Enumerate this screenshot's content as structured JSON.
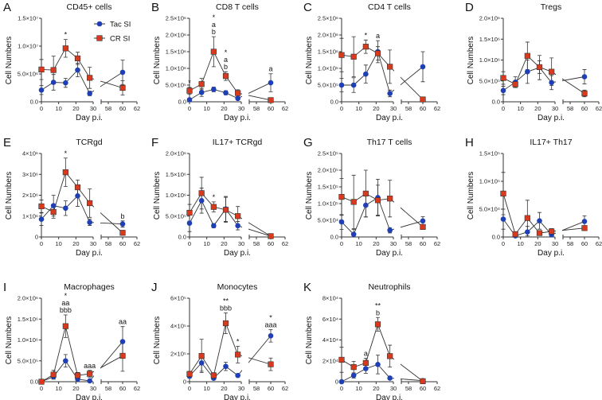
{
  "colors": {
    "tac": "#1f3fb5",
    "cr": "#d9391c",
    "line": "#333333"
  },
  "legend": [
    {
      "name": "Tac SI",
      "marker": "circle"
    },
    {
      "name": "CR SI",
      "marker": "square"
    }
  ],
  "chart_data": [
    {
      "type": "line",
      "panel": "A",
      "title": "CD45+ cells",
      "xlabel": "Day p.i.",
      "ylabel": "Cell Numbers",
      "x": [
        0,
        7,
        14,
        21,
        28,
        60
      ],
      "xticks": [
        "0",
        "10",
        "20",
        "30",
        "58",
        "60",
        "62"
      ],
      "xlim": [
        [
          0,
          30
        ],
        [
          57,
          62
        ]
      ],
      "ylim": [
        0,
        15000000
      ],
      "yticks": [
        0,
        5000000,
        10000000,
        15000000
      ],
      "ytick_labels": [
        "0.0",
        "5.0×10⁶",
        "1.0×10⁷",
        "1.5×10⁷"
      ],
      "series": [
        {
          "name": "Tac SI",
          "values": [
            2100000.0,
            3500000.0,
            3400000.0,
            5700000.0,
            1500000.0,
            5300000.0
          ],
          "err": [
            800000.0,
            1400000.0,
            800000.0,
            1200000.0,
            400000.0,
            2200000.0
          ]
        },
        {
          "name": "CR SI",
          "values": [
            5800000.0,
            5700000.0,
            9600000.0,
            7800000.0,
            4300000.0,
            2500000.0
          ],
          "err": [
            1800000.0,
            2500000.0,
            1600000.0,
            1100000.0,
            1900000.0,
            1300000.0
          ]
        }
      ],
      "annotations": [
        {
          "x": 14,
          "labels": [
            "*"
          ]
        }
      ]
    },
    {
      "type": "line",
      "panel": "B",
      "title": "CD8 T cells",
      "xlabel": "Day p.i.",
      "ylabel": "Cell Numbers",
      "x": [
        0,
        7,
        14,
        21,
        28,
        60
      ],
      "xticks": [
        "0",
        "10",
        "20",
        "30",
        "58",
        "60",
        "62"
      ],
      "xlim": [
        [
          0,
          30
        ],
        [
          57,
          62
        ]
      ],
      "ylim": [
        0,
        2500000
      ],
      "yticks": [
        0,
        500000,
        1000000,
        1500000,
        2000000,
        2500000
      ],
      "ytick_labels": [
        "0.0",
        "5.0×10⁵",
        "1.0×10⁶",
        "1.5×10⁶",
        "2.0×10⁶",
        "2.5×10⁶"
      ],
      "series": [
        {
          "name": "Tac SI",
          "values": [
            60000.0,
            280000.0,
            370000.0,
            270000.0,
            100000.0,
            570000.0
          ],
          "err": [
            30000.0,
            120000.0,
            70000.0,
            60000.0,
            40000.0,
            270000.0
          ]
        },
        {
          "name": "CR SI",
          "values": [
            330000.0,
            530000.0,
            1500000.0,
            770000.0,
            260000.0,
            50000.0
          ],
          "err": [
            100000.0,
            170000.0,
            450000.0,
            130000.0,
            100000.0,
            30000.0
          ]
        }
      ],
      "annotations": [
        {
          "x": 0,
          "labels": [
            "*"
          ]
        },
        {
          "x": 14,
          "labels": [
            "*",
            "a",
            "b"
          ]
        },
        {
          "x": 21,
          "labels": [
            "*",
            "a",
            "b"
          ]
        },
        {
          "x": 60,
          "labels": [
            "a"
          ]
        }
      ]
    },
    {
      "type": "line",
      "panel": "C",
      "title": "CD4 T cells",
      "xlabel": "Day p.i.",
      "ylabel": "Cell Numbers",
      "x": [
        0,
        7,
        14,
        21,
        28,
        60
      ],
      "xticks": [
        "0",
        "10",
        "20",
        "30",
        "58",
        "60",
        "62"
      ],
      "xlim": [
        [
          0,
          30
        ],
        [
          57,
          62
        ]
      ],
      "ylim": [
        0,
        2500000
      ],
      "yticks": [
        0,
        500000,
        1000000,
        1500000,
        2000000,
        2500000
      ],
      "ytick_labels": [
        "0.0",
        "5.0×10⁵",
        "1.0×10⁶",
        "1.5×10⁶",
        "2.0×10⁶",
        "2.5×10⁶"
      ],
      "series": [
        {
          "name": "Tac SI",
          "values": [
            500000.0,
            500000.0,
            830000.0,
            1500000.0,
            250000.0,
            1050000.0
          ],
          "err": [
            200000.0,
            220000.0,
            270000.0,
            330000.0,
            100000.0,
            450000.0
          ]
        },
        {
          "name": "CR SI",
          "values": [
            1400000.0,
            1350000.0,
            1650000.0,
            1450000.0,
            1050000.0,
            70000.0
          ],
          "err": [
            500000.0,
            600000.0,
            200000.0,
            200000.0,
            500000.0,
            50000.0
          ]
        }
      ],
      "annotations": [
        {
          "x": 14,
          "labels": [
            "*"
          ]
        },
        {
          "x": 21,
          "labels": [
            "a"
          ]
        }
      ]
    },
    {
      "type": "line",
      "panel": "D",
      "title": "Tregs",
      "xlabel": "Day p.i.",
      "ylabel": "Cell Numbers",
      "x": [
        0,
        7,
        14,
        21,
        28,
        60
      ],
      "xticks": [
        "0",
        "10",
        "20",
        "30",
        "58",
        "60",
        "62"
      ],
      "xlim": [
        [
          0,
          30
        ],
        [
          57,
          62
        ]
      ],
      "ylim": [
        0,
        2000000
      ],
      "yticks": [
        0,
        500000,
        1000000,
        1500000,
        2000000
      ],
      "ytick_labels": [
        "0.0",
        "5.0×10⁵",
        "1.0×10⁶",
        "1.5×10⁶",
        "2.0×10⁶"
      ],
      "series": [
        {
          "name": "Tac SI",
          "values": [
            270000.0,
            470000.0,
            720000.0,
            820000.0,
            460000.0,
            600000.0
          ],
          "err": [
            100000.0,
            130000.0,
            280000.0,
            290000.0,
            170000.0,
            170000.0
          ]
        },
        {
          "name": "CR SI",
          "values": [
            570000.0,
            420000.0,
            1100000.0,
            830000.0,
            720000.0,
            200000.0
          ],
          "err": [
            150000.0,
            80000.0,
            330000.0,
            150000.0,
            330000.0,
            80000.0
          ]
        }
      ],
      "annotations": []
    },
    {
      "type": "line",
      "panel": "E",
      "title": "TCRgd",
      "xlabel": "Day p.i.",
      "ylabel": "Cell Numbers",
      "x": [
        0,
        7,
        14,
        21,
        28,
        60
      ],
      "xticks": [
        "0",
        "10",
        "20",
        "30",
        "58",
        "60",
        "62"
      ],
      "xlim": [
        [
          0,
          30
        ],
        [
          57,
          62
        ]
      ],
      "ylim": [
        0,
        4000000
      ],
      "yticks": [
        0,
        1000000,
        2000000,
        3000000,
        4000000
      ],
      "ytick_labels": [
        "0",
        "1×10⁶",
        "2×10⁶",
        "3×10⁶",
        "4×10⁶"
      ],
      "series": [
        {
          "name": "Tac SI",
          "values": [
            850000.0,
            1500000.0,
            1380000.0,
            1970000.0,
            700000.0,
            620000.0
          ],
          "err": [
            300000.0,
            500000.0,
            350000.0,
            500000.0,
            150000.0,
            150000.0
          ]
        },
        {
          "name": "CR SI",
          "values": [
            1470000.0,
            1200000.0,
            3100000.0,
            2380000.0,
            1620000.0,
            200000.0
          ],
          "err": [
            300000.0,
            300000.0,
            680000.0,
            350000.0,
            680000.0,
            100000.0
          ]
        }
      ],
      "annotations": [
        {
          "x": 14,
          "labels": [
            "*"
          ]
        },
        {
          "x": 60,
          "labels": [
            "b"
          ]
        }
      ]
    },
    {
      "type": "line",
      "panel": "F",
      "title": "IL17+ TCRgd",
      "xlabel": "Day p.i.",
      "ylabel": "Cell Numbers",
      "x": [
        0,
        7,
        14,
        21,
        28,
        60
      ],
      "xticks": [
        "0",
        "10",
        "20",
        "30",
        "58",
        "60",
        "62"
      ],
      "xlim": [
        [
          0,
          30
        ],
        [
          57,
          62
        ]
      ],
      "ylim": [
        0,
        2000000
      ],
      "yticks": [
        0,
        500000,
        1000000,
        1500000,
        2000000
      ],
      "ytick_labels": [
        "0.0",
        "5.0×10⁵",
        "1.0×10⁶",
        "1.5×10⁶",
        "2.0×10⁶"
      ],
      "series": [
        {
          "name": "Tac SI",
          "values": [
            330000.0,
            870000.0,
            270000.0,
            670000.0,
            270000.0,
            20000.0
          ],
          "err": [
            200000.0,
            300000.0,
            50000.0,
            300000.0,
            100000.0,
            10000.0
          ]
        },
        {
          "name": "CR SI",
          "values": [
            580000.0,
            1050000.0,
            720000.0,
            650000.0,
            500000.0,
            20000.0
          ],
          "err": [
            200000.0,
            380000.0,
            120000.0,
            300000.0,
            230000.0,
            10000.0
          ]
        }
      ],
      "annotations": [
        {
          "x": 14,
          "labels": [
            "*"
          ]
        }
      ]
    },
    {
      "type": "line",
      "panel": "G",
      "title": "Th17 T cells",
      "xlabel": "Day p.i.",
      "ylabel": "Cell Numbers",
      "x": [
        0,
        7,
        14,
        21,
        28,
        60
      ],
      "xticks": [
        "0",
        "10",
        "20",
        "30",
        "58",
        "60",
        "62"
      ],
      "xlim": [
        [
          0,
          30
        ],
        [
          57,
          62
        ]
      ],
      "ylim": [
        0,
        250000
      ],
      "yticks": [
        0,
        50000,
        100000,
        150000,
        200000,
        250000
      ],
      "ytick_labels": [
        "0.0",
        "5.0×10⁴",
        "1.0×10⁵",
        "1.5×10⁵",
        "2.0×10⁵",
        "2.5×10⁵"
      ],
      "series": [
        {
          "name": "Tac SI",
          "values": [
            45000.0,
            8000.0,
            95000.0,
            118000.0,
            20000.0,
            48000.0
          ],
          "err": [
            22000.0,
            15000.0,
            35000.0,
            55000.0,
            8000.0,
            13000.0
          ]
        },
        {
          "name": "CR SI",
          "values": [
            120000.0,
            105000.0,
            130000.0,
            110000.0,
            115000.0,
            30000.0
          ],
          "err": [
            55000.0,
            80000.0,
            70000.0,
            45000.0,
            55000.0,
            5000.0
          ]
        }
      ],
      "annotations": []
    },
    {
      "type": "line",
      "panel": "H",
      "title": "IL17+ Th17",
      "xlabel": "Day p.i.",
      "ylabel": "Cell Numbers",
      "x": [
        0,
        7,
        14,
        21,
        28,
        60
      ],
      "xticks": [
        "0",
        "10",
        "20",
        "30",
        "58",
        "60",
        "62"
      ],
      "xlim": [
        [
          0,
          30
        ],
        [
          57,
          62
        ]
      ],
      "ylim": [
        0,
        150000
      ],
      "yticks": [
        0,
        50000,
        100000,
        150000
      ],
      "ytick_labels": [
        "0.0",
        "5.0×10⁴",
        "1.0×10⁵",
        "1.5×10⁵"
      ],
      "series": [
        {
          "name": "Tac SI",
          "values": [
            32000.0,
            2000.0,
            9000.0,
            29000.0,
            4000.0,
            28000.0
          ],
          "err": [
            18000.0,
            1000.0,
            10000.0,
            15000.0,
            3000.0,
            10000.0
          ]
        },
        {
          "name": "CR SI",
          "values": [
            78000.0,
            5000.0,
            34000.0,
            7000.0,
            10000.0,
            16000.0
          ],
          "err": [
            38000.0,
            3000.0,
            32000.0,
            4000.0,
            5000.0,
            2000.0
          ]
        }
      ],
      "annotations": []
    },
    {
      "type": "line",
      "panel": "I",
      "title": "Macrophages",
      "xlabel": "Day p.i.",
      "ylabel": "Cell Numbers",
      "x": [
        0,
        7,
        14,
        21,
        28,
        60
      ],
      "xticks": [
        "0",
        "10",
        "20",
        "30",
        "58",
        "60",
        "62"
      ],
      "xlim": [
        [
          0,
          30
        ],
        [
          57,
          62
        ]
      ],
      "ylim": [
        0,
        2000000
      ],
      "yticks": [
        0,
        500000,
        1000000,
        1500000,
        2000000
      ],
      "ytick_labels": [
        "0.0",
        "5.0×10⁵",
        "1.0×10⁶",
        "1.5×10⁶",
        "2.0×10⁶"
      ],
      "series": [
        {
          "name": "Tac SI",
          "values": [
            0,
            120000.0,
            500000.0,
            60000.0,
            20000.0,
            960000.0
          ],
          "err": [
            0,
            60000.0,
            150000.0,
            30000.0,
            10000.0,
            360000.0
          ]
        },
        {
          "name": "CR SI",
          "values": [
            0,
            170000.0,
            1330000.0,
            150000.0,
            190000.0,
            620000.0
          ],
          "err": [
            0,
            100000.0,
            270000.0,
            70000.0,
            80000.0,
            370000.0
          ]
        }
      ],
      "annotations": [
        {
          "x": 14,
          "labels": [
            "*",
            "aa",
            "bbb"
          ]
        },
        {
          "x": 28,
          "labels": [
            "aaa"
          ]
        },
        {
          "x": 60,
          "labels": [
            "aa"
          ]
        }
      ]
    },
    {
      "type": "line",
      "panel": "J",
      "title": "Monocytes",
      "xlabel": "Day p.i.",
      "ylabel": "Cell Numbers",
      "x": [
        0,
        7,
        14,
        21,
        28,
        60
      ],
      "xticks": [
        "0",
        "10",
        "20",
        "30",
        "58",
        "60",
        "62"
      ],
      "xlim": [
        [
          0,
          30
        ],
        [
          57,
          62
        ]
      ],
      "ylim": [
        0,
        600000
      ],
      "yticks": [
        0,
        200000,
        400000,
        600000
      ],
      "ytick_labels": [
        "0",
        "2×10⁵",
        "4×10⁵",
        "6×10⁵"
      ],
      "series": [
        {
          "name": "Tac SI",
          "values": [
            40000.0,
            135000.0,
            25000.0,
            110000.0,
            45000.0,
            330000.0
          ],
          "err": [
            15000.0,
            60000.0,
            10000.0,
            30000.0,
            10000.0,
            45000.0
          ]
        },
        {
          "name": "CR SI",
          "values": [
            55000.0,
            185000.0,
            45000.0,
            420000.0,
            195000.0,
            125000.0
          ],
          "err": [
            20000.0,
            120000.0,
            20000.0,
            75000.0,
            60000.0,
            45000.0
          ]
        }
      ],
      "annotations": [
        {
          "x": 21,
          "labels": [
            "**",
            "bbb"
          ]
        },
        {
          "x": 28,
          "labels": [
            "*"
          ]
        },
        {
          "x": 60,
          "labels": [
            "*",
            "aaa"
          ]
        }
      ]
    },
    {
      "type": "line",
      "panel": "K",
      "title": "Neutrophils",
      "xlabel": "Day p.i.",
      "ylabel": "Cell Numbers",
      "x": [
        0,
        7,
        14,
        21,
        28,
        60
      ],
      "xticks": [
        "0",
        "10",
        "20",
        "30",
        "58",
        "60",
        "62"
      ],
      "xlim": [
        [
          0,
          30
        ],
        [
          57,
          62
        ]
      ],
      "ylim": [
        0,
        80000
      ],
      "yticks": [
        0,
        20000,
        40000,
        60000,
        80000
      ],
      "ytick_labels": [
        "0",
        "2×10⁴",
        "4×10⁴",
        "6×10⁴",
        "8×10⁴"
      ],
      "series": [
        {
          "name": "Tac SI",
          "values": [
            0,
            6000.0,
            12500.0,
            16500.0,
            3500.0,
            1000.0
          ],
          "err": [
            0,
            2500.0,
            4500.0,
            9000.0,
            1500.0,
            500.0
          ]
        },
        {
          "name": "CR SI",
          "values": [
            21000.0,
            14000.0,
            18000.0,
            55000.0,
            24500.0,
            500.0
          ],
          "err": [
            12000.0,
            5500.0,
            4500.0,
            6500.0,
            10500.0,
            500.0
          ]
        }
      ],
      "annotations": [
        {
          "x": 14,
          "labels": [
            "a"
          ]
        },
        {
          "x": 21,
          "labels": [
            "**",
            "b"
          ]
        }
      ]
    }
  ]
}
